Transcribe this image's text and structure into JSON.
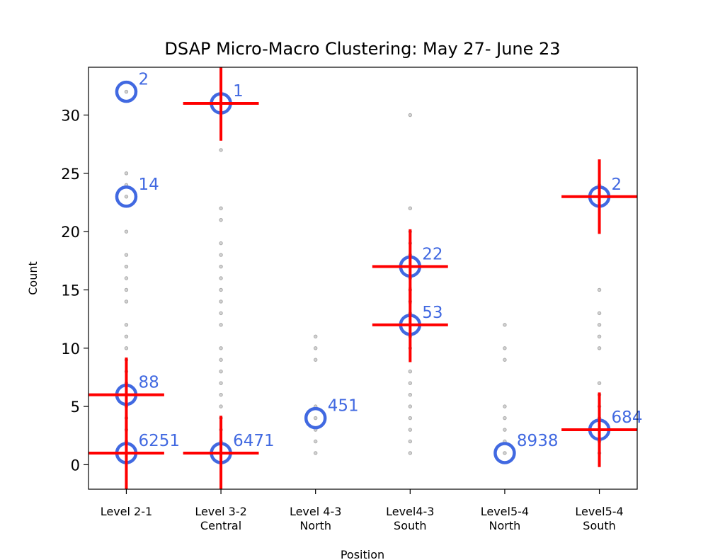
{
  "chart_data": {
    "type": "scatter",
    "title": "DSAP Micro-Macro Clustering: May 27- June 23",
    "xlabel": "Position",
    "ylabel": "Count",
    "ylim": [
      -2.1,
      34.1
    ],
    "yticks": [
      0,
      5,
      10,
      15,
      20,
      25,
      30
    ],
    "categories": [
      [
        "Level 2-1"
      ],
      [
        "Level 3-2",
        "Central"
      ],
      [
        "Level 4-3",
        "North"
      ],
      [
        "Level4-3",
        "South"
      ],
      [
        "Level5-4",
        "North"
      ],
      [
        "Level5-4",
        "South"
      ]
    ],
    "grid": false,
    "colors": {
      "points": "#a9a9a9",
      "clusters": "#4169e1",
      "crosshair": "#ff0000"
    },
    "points": [
      [
        1,
        2,
        3,
        4,
        5,
        6,
        7,
        8,
        9,
        10,
        11,
        12,
        14,
        15,
        16,
        17,
        18,
        20,
        23,
        24,
        25,
        32
      ],
      [
        1,
        2,
        3,
        4,
        5,
        6,
        7,
        8,
        9,
        10,
        12,
        13,
        14,
        15,
        16,
        17,
        18,
        19,
        21,
        22,
        27,
        31
      ],
      [
        1,
        2,
        3,
        4,
        5,
        9,
        10,
        11
      ],
      [
        1,
        2,
        3,
        4,
        5,
        6,
        7,
        8,
        10,
        11,
        12,
        13,
        14,
        15,
        16,
        17,
        18,
        19,
        20,
        22,
        30
      ],
      [
        1,
        2,
        3,
        4,
        5,
        9,
        10,
        12
      ],
      [
        1,
        2,
        3,
        4,
        5,
        6,
        7,
        10,
        11,
        12,
        13,
        15,
        23,
        24
      ]
    ],
    "clusters": [
      {
        "x": 0,
        "y": 32,
        "label": "2"
      },
      {
        "x": 0,
        "y": 23,
        "label": "14"
      },
      {
        "x": 0,
        "y": 6,
        "label": "88"
      },
      {
        "x": 0,
        "y": 1,
        "label": "6251"
      },
      {
        "x": 1,
        "y": 31,
        "label": "1"
      },
      {
        "x": 1,
        "y": 1,
        "label": "6471"
      },
      {
        "x": 2,
        "y": 4,
        "label": "451"
      },
      {
        "x": 3,
        "y": 17,
        "label": "22"
      },
      {
        "x": 3,
        "y": 12,
        "label": "53"
      },
      {
        "x": 4,
        "y": 1,
        "label": "8938"
      },
      {
        "x": 5,
        "y": 23,
        "label": "2"
      },
      {
        "x": 5,
        "y": 3,
        "label": "684"
      }
    ],
    "crosshairs": [
      {
        "x": 0,
        "y": 6,
        "xerr": 0.4,
        "yerr": 3.2
      },
      {
        "x": 0,
        "y": 1,
        "xerr": 0.4,
        "yerr": 3.2
      },
      {
        "x": 1,
        "y": 31,
        "xerr": 0.4,
        "yerr": 3.2
      },
      {
        "x": 1,
        "y": 1,
        "xerr": 0.4,
        "yerr": 3.2
      },
      {
        "x": 3,
        "y": 17,
        "xerr": 0.4,
        "yerr": 3.2
      },
      {
        "x": 3,
        "y": 12,
        "xerr": 0.4,
        "yerr": 3.2
      },
      {
        "x": 5,
        "y": 23,
        "xerr": 0.4,
        "yerr": 3.2
      },
      {
        "x": 5,
        "y": 3,
        "xerr": 0.4,
        "yerr": 3.2
      }
    ]
  }
}
